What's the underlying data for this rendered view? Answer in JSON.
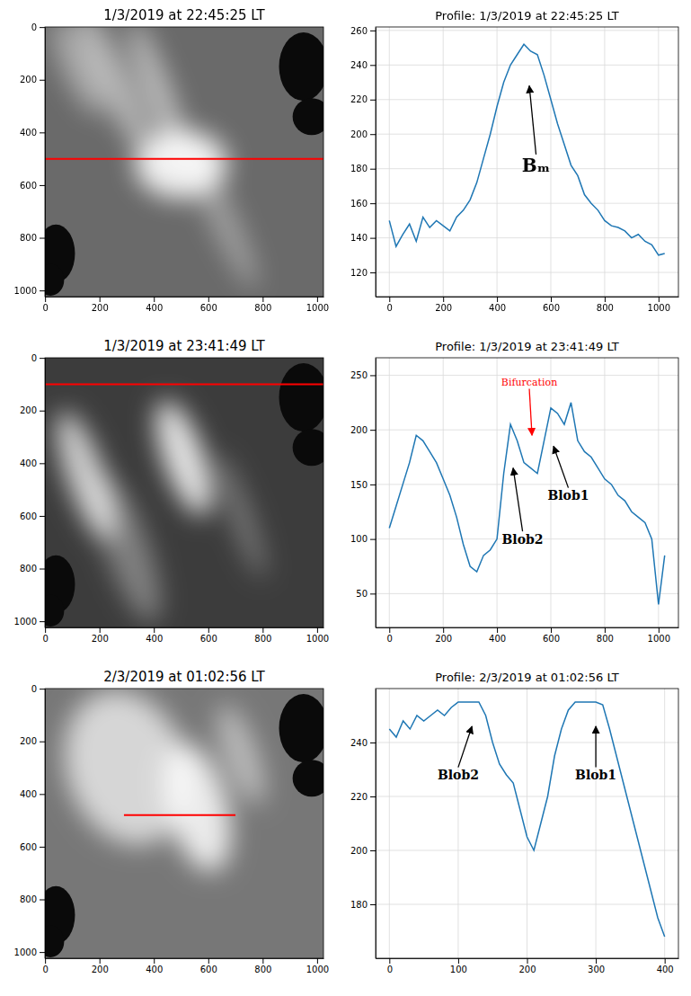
{
  "chart_data": [
    {
      "type": "image",
      "title": "1/3/2019 at 22:45:25 LT",
      "xlim": [
        -0.5,
        1023.5
      ],
      "ylim": [
        1023.5,
        -0.5
      ],
      "xticks": [
        0,
        200,
        400,
        600,
        800,
        1000
      ],
      "yticks": [
        0,
        200,
        400,
        600,
        800,
        1000
      ],
      "cut_line": {
        "y": 500,
        "x": [
          0,
          1023
        ],
        "color": "#ff0000"
      }
    },
    {
      "type": "line",
      "title": "Profile: 1/3/2019 at 22:45:25 LT",
      "color": "#1f77b4",
      "grid": true,
      "x": [
        0,
        25,
        50,
        75,
        100,
        125,
        150,
        175,
        200,
        225,
        250,
        275,
        300,
        325,
        350,
        375,
        400,
        425,
        450,
        475,
        500,
        525,
        550,
        575,
        600,
        625,
        650,
        675,
        700,
        725,
        750,
        775,
        800,
        825,
        850,
        875,
        900,
        925,
        950,
        975,
        1000,
        1023
      ],
      "values": [
        150,
        135,
        142,
        148,
        138,
        152,
        146,
        150,
        147,
        144,
        152,
        156,
        162,
        172,
        186,
        200,
        216,
        230,
        240,
        246,
        252,
        248,
        246,
        234,
        220,
        206,
        194,
        182,
        176,
        165,
        160,
        156,
        150,
        147,
        146,
        144,
        140,
        142,
        138,
        136,
        130,
        131
      ],
      "xlim": [
        -51,
        1074
      ],
      "ylim": [
        106,
        262
      ],
      "xticks": [
        0,
        200,
        400,
        600,
        800,
        1000
      ],
      "yticks": [
        120,
        140,
        160,
        180,
        200,
        220,
        240,
        260
      ],
      "annotations": [
        {
          "text": "Bₘ",
          "x": 520,
          "y": 228,
          "text_x": 545,
          "text_y": 182
        }
      ]
    },
    {
      "type": "image",
      "title": "1/3/2019 at 23:41:49 LT",
      "xlim": [
        -0.5,
        1023.5
      ],
      "ylim": [
        1023.5,
        -0.5
      ],
      "xticks": [
        0,
        200,
        400,
        600,
        800,
        1000
      ],
      "yticks": [
        0,
        200,
        400,
        600,
        800,
        1000
      ],
      "cut_line": {
        "y": 100,
        "x": [
          0,
          1023
        ],
        "color": "#ff0000"
      }
    },
    {
      "type": "line",
      "title": "Profile: 1/3/2019 at 23:41:49 LT",
      "color": "#1f77b4",
      "grid": true,
      "x": [
        0,
        25,
        50,
        75,
        100,
        125,
        150,
        175,
        200,
        225,
        250,
        275,
        300,
        325,
        350,
        375,
        400,
        425,
        450,
        475,
        500,
        525,
        550,
        575,
        600,
        625,
        650,
        675,
        700,
        725,
        750,
        775,
        800,
        825,
        850,
        875,
        900,
        925,
        950,
        975,
        1000,
        1023
      ],
      "values": [
        110,
        130,
        150,
        170,
        195,
        190,
        180,
        170,
        155,
        140,
        120,
        95,
        75,
        70,
        85,
        90,
        100,
        160,
        205,
        190,
        170,
        165,
        160,
        190,
        220,
        215,
        205,
        225,
        190,
        180,
        175,
        165,
        155,
        150,
        140,
        135,
        125,
        120,
        115,
        100,
        40,
        85
      ],
      "xlim": [
        -51,
        1074
      ],
      "ylim": [
        19,
        266
      ],
      "xticks": [
        0,
        200,
        400,
        600,
        800,
        1000
      ],
      "yticks": [
        50,
        100,
        150,
        200,
        250
      ],
      "annotations": [
        {
          "text": "Bifurcation",
          "x": 530,
          "y": 195,
          "text_x": 520,
          "text_y": 243,
          "color": "#ff0000"
        },
        {
          "text": "Blob2",
          "x": 460,
          "y": 165,
          "text_x": 495,
          "text_y": 100
        },
        {
          "text": "Blob1",
          "x": 610,
          "y": 185,
          "text_x": 665,
          "text_y": 140
        }
      ]
    },
    {
      "type": "image",
      "title": "2/3/2019 at 01:02:56 LT",
      "xlim": [
        -0.5,
        1023.5
      ],
      "ylim": [
        1023.5,
        -0.5
      ],
      "xticks": [
        0,
        200,
        400,
        600,
        800,
        1000
      ],
      "yticks": [
        0,
        200,
        400,
        600,
        800,
        1000
      ],
      "cut_line": {
        "y": 480,
        "x": [
          290,
          700
        ],
        "color": "#ff0000"
      }
    },
    {
      "type": "line",
      "title": "Profile: 2/3/2019 at 01:02:56 LT",
      "color": "#1f77b4",
      "grid": true,
      "x": [
        0,
        10,
        20,
        30,
        40,
        50,
        60,
        70,
        80,
        90,
        100,
        110,
        120,
        130,
        140,
        150,
        160,
        170,
        180,
        190,
        200,
        210,
        220,
        230,
        240,
        250,
        260,
        270,
        280,
        290,
        300,
        310,
        320,
        330,
        340,
        350,
        360,
        370,
        380,
        390,
        400
      ],
      "values": [
        245,
        242,
        248,
        245,
        250,
        248,
        250,
        252,
        250,
        253,
        255,
        255,
        255,
        255,
        250,
        240,
        232,
        228,
        225,
        215,
        205,
        200,
        210,
        220,
        235,
        245,
        252,
        255,
        255,
        255,
        255,
        254,
        245,
        235,
        225,
        215,
        205,
        195,
        185,
        175,
        168
      ],
      "xlim": [
        -20,
        420
      ],
      "ylim": [
        160,
        260
      ],
      "xticks": [
        0,
        100,
        200,
        300,
        400
      ],
      "yticks": [
        180,
        200,
        220,
        240
      ],
      "annotations": [
        {
          "text": "Blob2",
          "x": 120,
          "y": 246,
          "text_x": 100,
          "text_y": 228
        },
        {
          "text": "Blob1",
          "x": 300,
          "y": 246,
          "text_x": 300,
          "text_y": 228
        }
      ]
    }
  ]
}
